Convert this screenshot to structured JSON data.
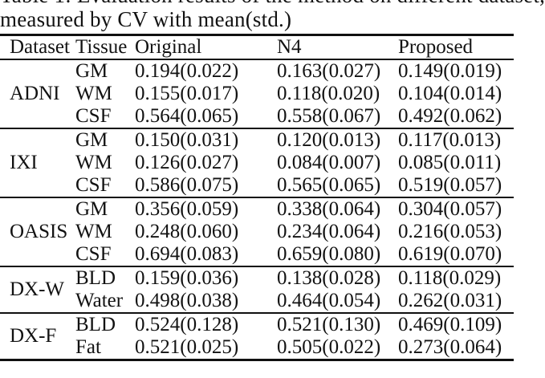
{
  "caption": {
    "line1": "Table 1: Evaluation results of the method on different dataset,",
    "line2": "measured by CV with mean(std.)"
  },
  "table": {
    "columns": {
      "dataset": "Dataset",
      "tissue": "Tissue",
      "original": "Original",
      "n4": "N4",
      "proposed": "Proposed"
    },
    "groups": [
      {
        "dataset": "ADNI",
        "rows": [
          {
            "tissue": "GM",
            "original": "0.194(0.022)",
            "n4": "0.163(0.027)",
            "proposed": "0.149(0.019)"
          },
          {
            "tissue": "WM",
            "original": "0.155(0.017)",
            "n4": "0.118(0.020)",
            "proposed": "0.104(0.014)"
          },
          {
            "tissue": "CSF",
            "original": "0.564(0.065)",
            "n4": "0.558(0.067)",
            "proposed": "0.492(0.062)"
          }
        ]
      },
      {
        "dataset": "IXI",
        "rows": [
          {
            "tissue": "GM",
            "original": "0.150(0.031)",
            "n4": "0.120(0.013)",
            "proposed": "0.117(0.013)"
          },
          {
            "tissue": "WM",
            "original": "0.126(0.027)",
            "n4": "0.084(0.007)",
            "proposed": "0.085(0.011)"
          },
          {
            "tissue": "CSF",
            "original": "0.586(0.075)",
            "n4": "0.565(0.065)",
            "proposed": "0.519(0.057)"
          }
        ]
      },
      {
        "dataset": "OASIS",
        "rows": [
          {
            "tissue": "GM",
            "original": "0.356(0.059)",
            "n4": "0.338(0.064)",
            "proposed": "0.304(0.057)"
          },
          {
            "tissue": "WM",
            "original": "0.248(0.060)",
            "n4": "0.234(0.064)",
            "proposed": "0.216(0.053)"
          },
          {
            "tissue": "CSF",
            "original": "0.694(0.083)",
            "n4": "0.659(0.080)",
            "proposed": "0.619(0.070)"
          }
        ]
      },
      {
        "dataset": "DX-W",
        "rows": [
          {
            "tissue": "BLD",
            "original": "0.159(0.036)",
            "n4": "0.138(0.028)",
            "proposed": "0.118(0.029)"
          },
          {
            "tissue": "Water",
            "original": "0.498(0.038)",
            "n4": "0.464(0.054)",
            "proposed": "0.262(0.031)"
          }
        ]
      },
      {
        "dataset": "DX-F",
        "rows": [
          {
            "tissue": "BLD",
            "original": "0.524(0.128)",
            "n4": "0.521(0.130)",
            "proposed": "0.469(0.109)"
          },
          {
            "tissue": "Fat",
            "original": "0.521(0.025)",
            "n4": "0.505(0.022)",
            "proposed": "0.273(0.064)"
          }
        ]
      }
    ]
  },
  "colors": {
    "background": "#ffffff",
    "text": "#121212",
    "rule": "#101010"
  }
}
